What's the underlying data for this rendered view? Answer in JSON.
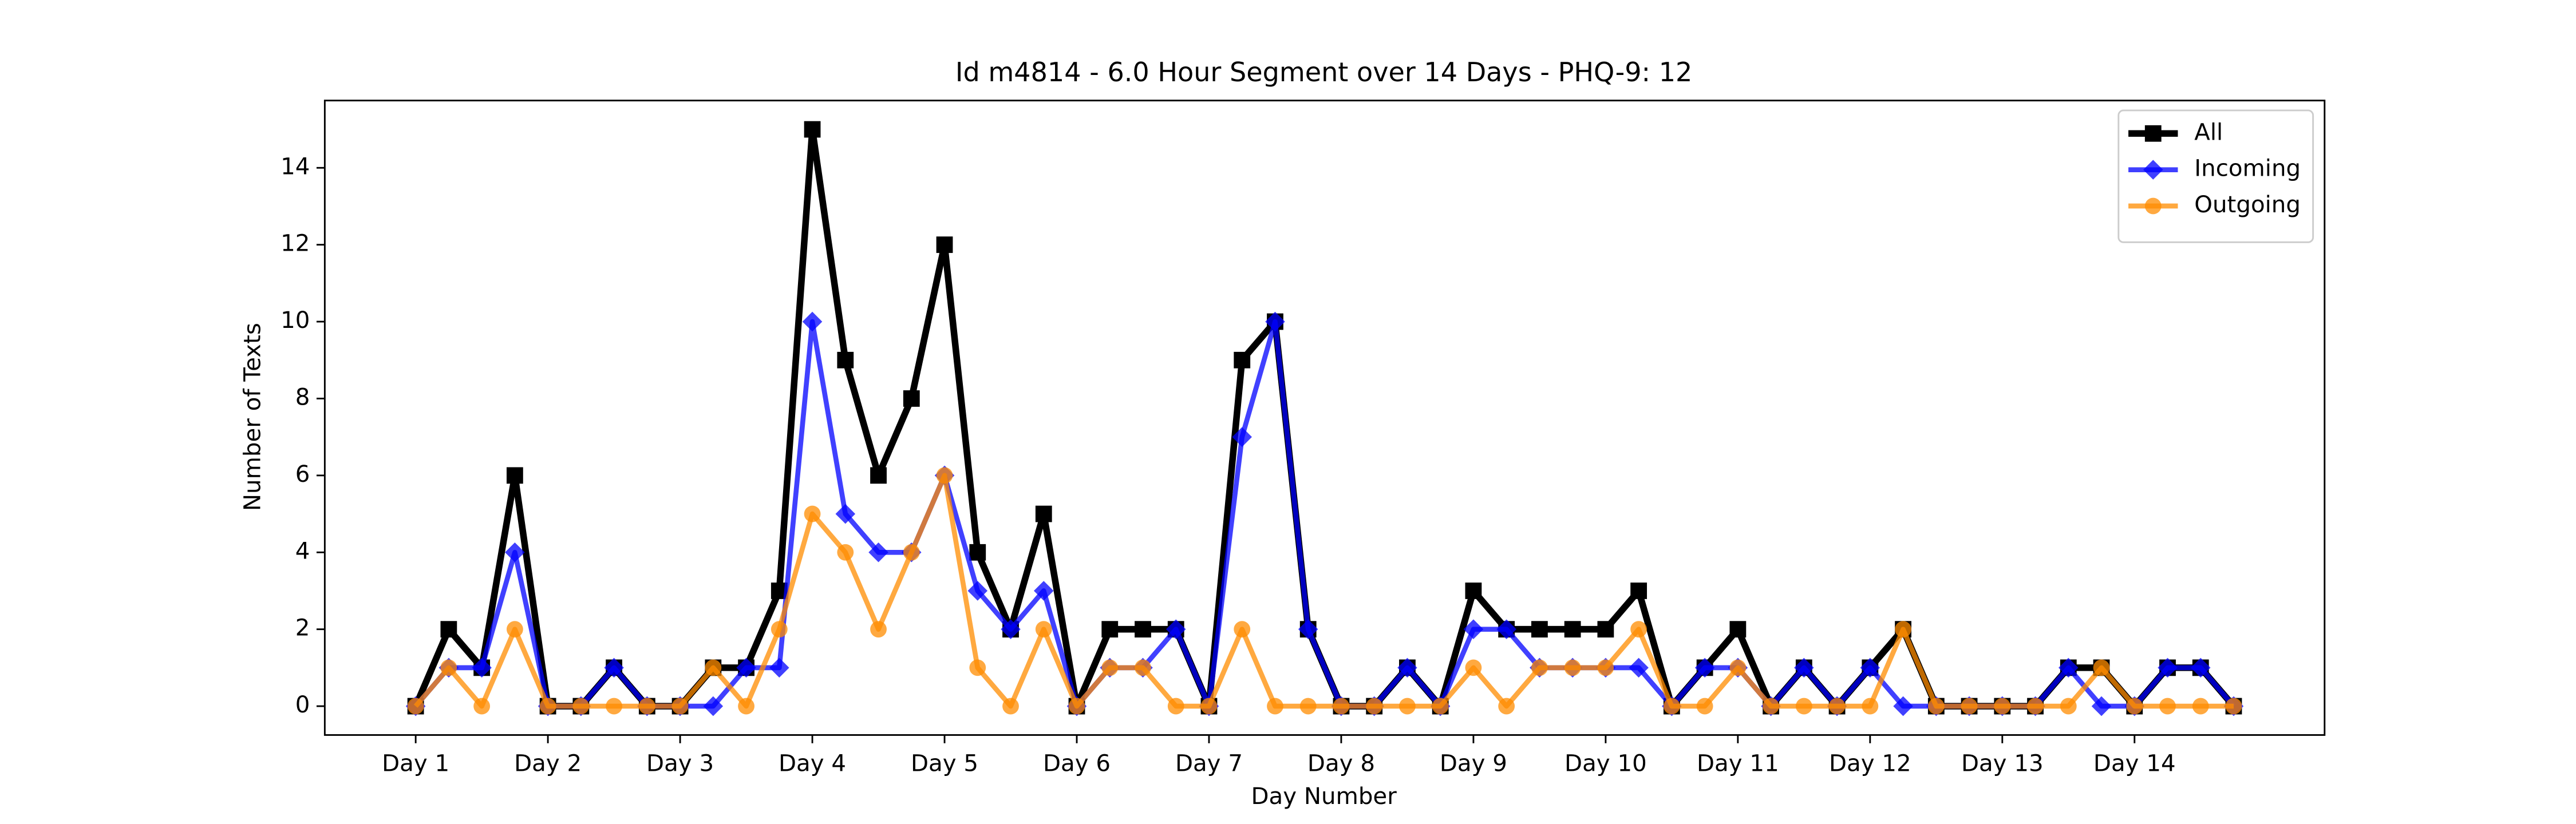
{
  "chart_data": {
    "type": "line",
    "title": "Id m4814 - 6.0 Hour Segment over 14 Days - PHQ-9: 12",
    "x_label": "Day Number",
    "y_label": "Number of Texts",
    "x": [
      0,
      1,
      2,
      3,
      4,
      5,
      6,
      7,
      8,
      9,
      10,
      11,
      12,
      13,
      14,
      15,
      16,
      17,
      18,
      19,
      20,
      21,
      22,
      23,
      24,
      25,
      26,
      27,
      28,
      29,
      30,
      31,
      32,
      33,
      34,
      35,
      36,
      37,
      38,
      39,
      40,
      41,
      42,
      43,
      44,
      45,
      46,
      47,
      48,
      49,
      50,
      51,
      52,
      53,
      54,
      55
    ],
    "xlim": [
      -2.75,
      57.75
    ],
    "xticks": [
      {
        "value": 0,
        "label": "Day 1"
      },
      {
        "value": 4,
        "label": "Day 2"
      },
      {
        "value": 8,
        "label": "Day 3"
      },
      {
        "value": 12,
        "label": "Day 4"
      },
      {
        "value": 16,
        "label": "Day 5"
      },
      {
        "value": 20,
        "label": "Day 6"
      },
      {
        "value": 24,
        "label": "Day 7"
      },
      {
        "value": 28,
        "label": "Day 8"
      },
      {
        "value": 32,
        "label": "Day 9"
      },
      {
        "value": 36,
        "label": "Day 10"
      },
      {
        "value": 40,
        "label": "Day 11"
      },
      {
        "value": 44,
        "label": "Day 12"
      },
      {
        "value": 48,
        "label": "Day 13"
      },
      {
        "value": 52,
        "label": "Day 14"
      }
    ],
    "ylim": [
      -0.75,
      15.75
    ],
    "yticks": [
      0,
      2,
      4,
      6,
      8,
      10,
      12,
      14
    ],
    "legend": "upper right",
    "series": [
      {
        "name": "All",
        "color": "#000000",
        "marker": "square",
        "values": [
          0,
          2,
          1,
          6,
          0,
          0,
          1,
          0,
          0,
          1,
          1,
          3,
          15,
          9,
          6,
          8,
          12,
          4,
          2,
          5,
          0,
          2,
          2,
          2,
          0,
          9,
          10,
          2,
          0,
          0,
          1,
          0,
          3,
          2,
          2,
          2,
          2,
          3,
          0,
          1,
          2,
          0,
          1,
          0,
          1,
          2,
          0,
          0,
          0,
          0,
          1,
          1,
          0,
          1,
          1,
          0
        ]
      },
      {
        "name": "Incoming",
        "color": "#0000ff",
        "marker": "diamond",
        "values": [
          0,
          1,
          1,
          4,
          0,
          0,
          1,
          0,
          0,
          0,
          1,
          1,
          10,
          5,
          4,
          4,
          6,
          3,
          2,
          3,
          0,
          1,
          1,
          2,
          0,
          7,
          10,
          2,
          0,
          0,
          1,
          0,
          2,
          2,
          1,
          1,
          1,
          1,
          0,
          1,
          1,
          0,
          1,
          0,
          1,
          0,
          0,
          0,
          0,
          0,
          1,
          0,
          0,
          1,
          1,
          0
        ]
      },
      {
        "name": "Outgoing",
        "color": "#ff8c00",
        "marker": "circle",
        "values": [
          0,
          1,
          0,
          2,
          0,
          0,
          0,
          0,
          0,
          1,
          0,
          2,
          5,
          4,
          2,
          4,
          6,
          1,
          0,
          2,
          0,
          1,
          1,
          0,
          0,
          2,
          0,
          0,
          0,
          0,
          0,
          0,
          1,
          0,
          1,
          1,
          1,
          2,
          0,
          0,
          1,
          0,
          0,
          0,
          0,
          2,
          0,
          0,
          0,
          0,
          0,
          1,
          0,
          0,
          0,
          0
        ]
      }
    ]
  }
}
